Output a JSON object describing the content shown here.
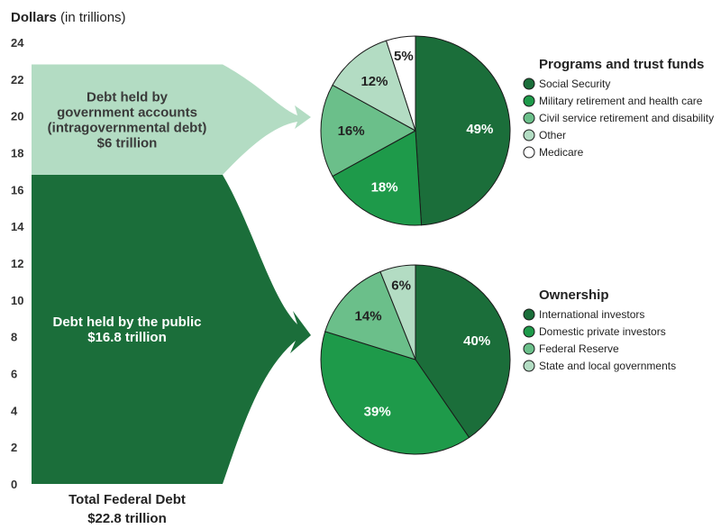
{
  "chart_data": [
    {
      "type": "bar",
      "title": "Dollars",
      "title_suffix": "(in trillions)",
      "ylim": [
        0,
        24
      ],
      "yticks": [
        0,
        2,
        4,
        6,
        8,
        10,
        12,
        14,
        16,
        18,
        20,
        22,
        24
      ],
      "stacked": true,
      "xlabel_line1": "Total Federal Debt",
      "xlabel_line2": "$22.8 trillion",
      "segments": [
        {
          "name": "Debt held by the public",
          "value": 16.8,
          "label_lines": [
            "Debt held by the public",
            "$16.8 trillion"
          ],
          "color": "#1b6e3a",
          "text_color": "#ffffff"
        },
        {
          "name": "Debt held by government accounts (intragovernmental debt)",
          "value": 6,
          "label_lines": [
            "Debt held by",
            "government accounts",
            "(intragovernmental debt)",
            "$6 trillion"
          ],
          "color": "#b3dcc3",
          "text_color": "#3a3a3a"
        }
      ]
    },
    {
      "type": "pie",
      "legend_title": "Programs and trust funds",
      "legend_placement": "right",
      "slices": [
        {
          "name": "Social Security",
          "value": 49,
          "label": "49%",
          "color": "#1b6e3a",
          "text_color": "#ffffff"
        },
        {
          "name": "Military retirement  and health care",
          "value": 18,
          "label": "18%",
          "color": "#1e9a4a",
          "text_color": "#ffffff"
        },
        {
          "name": "Civil service retirement and disability",
          "value": 16,
          "label": "16%",
          "color": "#6bbf8a",
          "text_color": "#222222"
        },
        {
          "name": "Other",
          "value": 12,
          "label": "12%",
          "color": "#b3dcc3",
          "text_color": "#222222"
        },
        {
          "name": "Medicare",
          "value": 5,
          "label": "5%",
          "color": "#ffffff",
          "text_color": "#222222"
        }
      ]
    },
    {
      "type": "pie",
      "legend_title": "Ownership",
      "legend_placement": "right",
      "slices": [
        {
          "name": "International investors",
          "value": 40,
          "label": "40%",
          "color": "#1b6e3a",
          "text_color": "#ffffff"
        },
        {
          "name": "Domestic private investors",
          "value": 39,
          "label": "39%",
          "color": "#1e9a4a",
          "text_color": "#ffffff"
        },
        {
          "name": "Federal Reserve",
          "value": 14,
          "label": "14%",
          "color": "#6bbf8a",
          "text_color": "#222222"
        },
        {
          "name": "State and local governments",
          "value": 6,
          "label": "6%",
          "color": "#b3dcc3",
          "text_color": "#222222"
        }
      ]
    }
  ]
}
